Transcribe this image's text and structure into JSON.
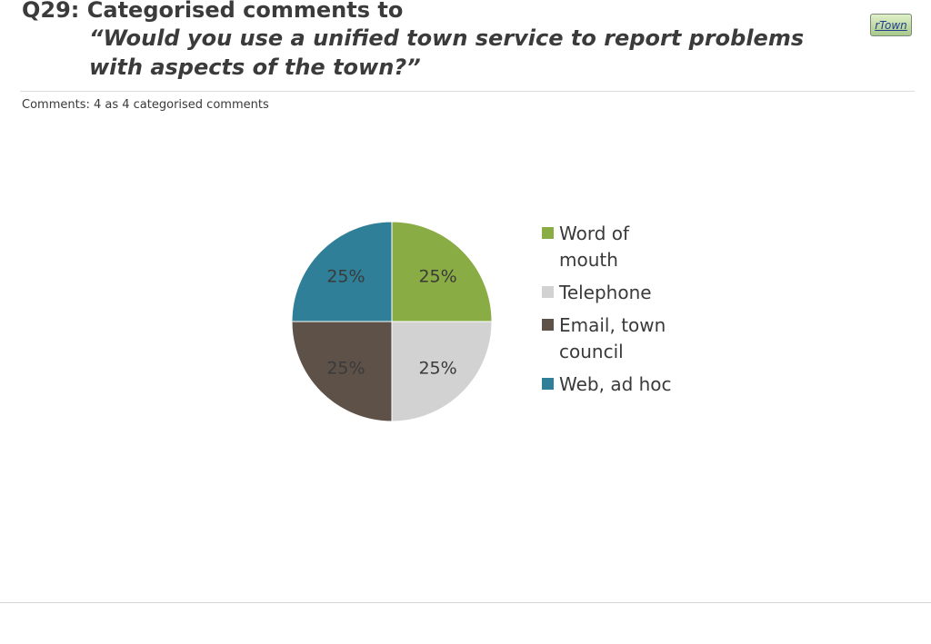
{
  "header": {
    "title": "Q29: Categorised comments to",
    "subtitle_line1": "“Would you use a unified town service to report problems",
    "subtitle_line2": "with aspects of the town?”",
    "badge": "rTown"
  },
  "comments_note": "Comments: 4 as 4 categorised comments",
  "colors": {
    "word_of_mouth": "#8aac44",
    "telephone": "#d2d2d2",
    "email_town_council": "#5d5148",
    "web_ad_hoc": "#2f7f98"
  },
  "chart_data": {
    "type": "pie",
    "categories": [
      "Word of mouth",
      "Telephone",
      "Email, town council",
      "Web, ad hoc"
    ],
    "values": [
      25,
      25,
      25,
      25
    ],
    "data_labels": [
      "25%",
      "25%",
      "25%",
      "25%"
    ],
    "legend_lines": [
      [
        "Word of",
        "mouth"
      ],
      [
        "Telephone"
      ],
      [
        "Email, town",
        "council"
      ],
      [
        "Web, ad hoc"
      ]
    ],
    "colors": [
      "#8aac44",
      "#d2d2d2",
      "#5d5148",
      "#2f7f98"
    ],
    "legend_position": "right",
    "start_angle": "12 o'clock",
    "direction": "clockwise"
  }
}
